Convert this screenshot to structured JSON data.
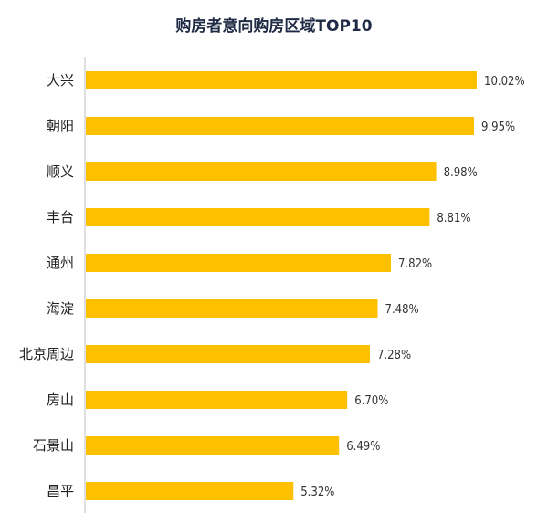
{
  "chart_data": {
    "type": "bar",
    "orientation": "horizontal",
    "title": "购房者意向购房区域TOP10",
    "categories": [
      "大兴",
      "朝阳",
      "顺义",
      "丰台",
      "通州",
      "海淀",
      "北京周边",
      "房山",
      "石景山",
      "昌平"
    ],
    "values": [
      10.02,
      9.95,
      8.98,
      8.81,
      7.82,
      7.48,
      7.28,
      6.7,
      6.49,
      5.32
    ],
    "value_labels": [
      "10.02%",
      "9.95%",
      "8.98%",
      "8.81%",
      "7.82%",
      "7.48%",
      "7.28%",
      "6.70%",
      "6.49%",
      "5.32%"
    ],
    "xlabel": "",
    "ylabel": "",
    "xlim": [
      0,
      10.02
    ],
    "grid": false,
    "legend": "none",
    "bar_color": "#FFC000"
  }
}
